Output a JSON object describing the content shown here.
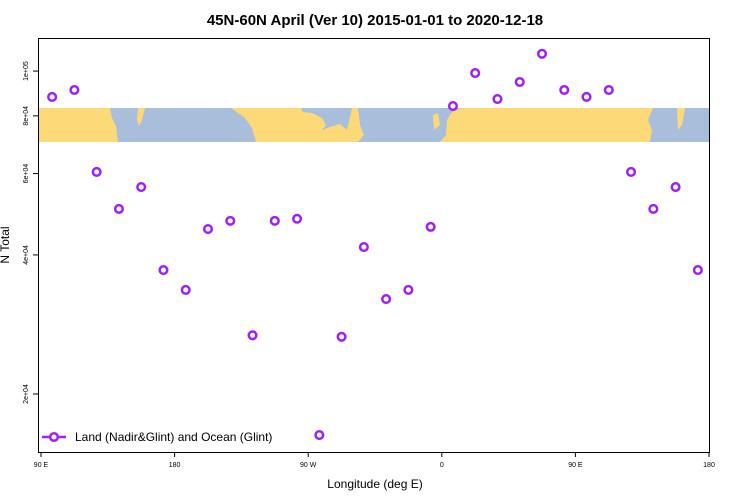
{
  "chart_data": {
    "type": "scatter",
    "title": "45N-60N April (Ver 10)   2015-01-01 to 2020-12-18",
    "xlabel": "Longitude (deg E)",
    "ylabel": "N Total",
    "y_scale": "log",
    "xlim": [
      90,
      540
    ],
    "x_ticks": [
      {
        "value": 90,
        "label": "90 E"
      },
      {
        "value": 180,
        "label": "180"
      },
      {
        "value": 270,
        "label": "90 W"
      },
      {
        "value": 360,
        "label": "0"
      },
      {
        "value": 450,
        "label": "90 E"
      },
      {
        "value": 540,
        "label": "180"
      }
    ],
    "y_ticks": [
      {
        "value": 20000,
        "label": "2e+04"
      },
      {
        "value": 40000,
        "label": "4e+04"
      },
      {
        "value": 60000,
        "label": "6e+04"
      },
      {
        "value": 80000,
        "label": "8e+04"
      },
      {
        "value": 100000,
        "label": "1e+05"
      }
    ],
    "grid": false,
    "legend_position": "bottom-left",
    "background_map": "world land/ocean strip 45N-60N",
    "colors": {
      "series": "#a020f0",
      "land": "#fdd978",
      "ocean": "#a8bedb"
    },
    "series": [
      {
        "name": "Land (Nadir&Glint) and Ocean (Glint)",
        "x": [
          97.5,
          112.5,
          127.5,
          142.5,
          157.5,
          172.5,
          187.5,
          202.5,
          217.5,
          232.5,
          247.5,
          262.5,
          277.5,
          292.5,
          307.5,
          322.5,
          337.5,
          352.5,
          367.5,
          382.5,
          397.5,
          412.5,
          427.5,
          442.5,
          457.5,
          472.5,
          487.5,
          502.5,
          517.5,
          532.5
        ],
        "y": [
          87900,
          91000,
          60500,
          50300,
          56100,
          37100,
          33600,
          45500,
          47400,
          26800,
          47400,
          47900,
          16300,
          26600,
          41600,
          32100,
          33600,
          46000,
          84000,
          99000,
          87000,
          94700,
          109000,
          91000,
          87900,
          91000,
          60500,
          50300,
          56100,
          37100
        ]
      }
    ]
  }
}
